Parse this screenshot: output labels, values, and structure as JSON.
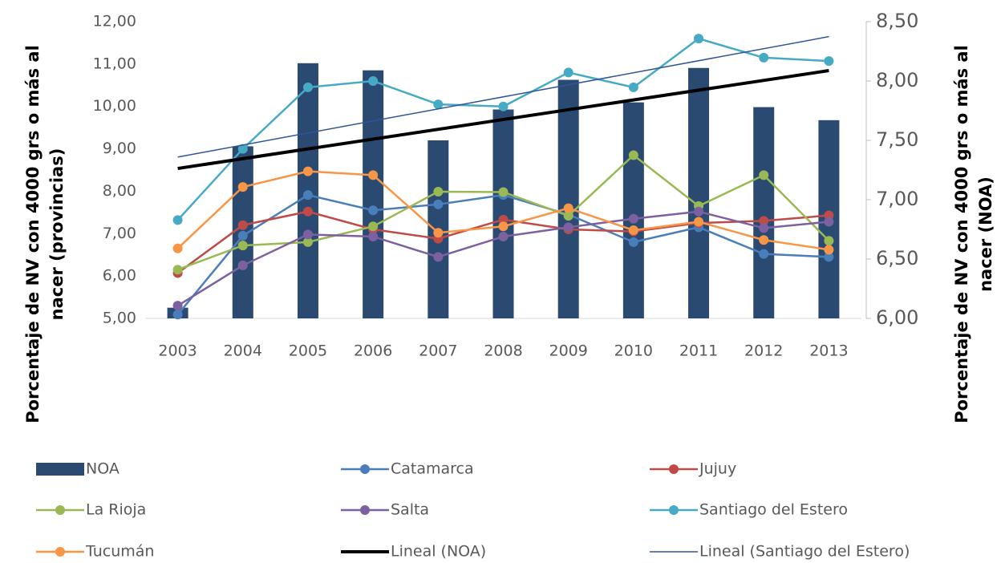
{
  "chart_data": {
    "type": "bar_line",
    "y_label": [
      "Porcentaje de NV con 4000 grs o más al",
      "nacer (provincias)"
    ],
    "y2_label": [
      "Porcentaje de NV con 4000 grs o más al",
      "nacer (NOA)"
    ],
    "categories": [
      "2003",
      "2004",
      "2005",
      "2006",
      "2007",
      "2008",
      "2009",
      "2010",
      "2011",
      "2012",
      "2013"
    ],
    "ylim": [
      5,
      12
    ],
    "yticks": [
      {
        "value": 5,
        "label": "5,00"
      },
      {
        "value": 6,
        "label": "6,00"
      },
      {
        "value": 7,
        "label": "7,00"
      },
      {
        "value": 8,
        "label": "8,00"
      },
      {
        "value": 9,
        "label": "9,00"
      },
      {
        "value": 10,
        "label": "10,00"
      },
      {
        "value": 11,
        "label": "11,00"
      },
      {
        "value": 12,
        "label": "12,00"
      }
    ],
    "y2lim": [
      6,
      8.5
    ],
    "y2ticks": [
      {
        "value": 6,
        "label": "6,00"
      },
      {
        "value": 6.5,
        "label": "6,50"
      },
      {
        "value": 7,
        "label": "7,00"
      },
      {
        "value": 7.5,
        "label": "7,50"
      },
      {
        "value": 8,
        "label": "8,00"
      },
      {
        "value": 8.5,
        "label": "8,50"
      }
    ],
    "series": [
      {
        "name": "NOA",
        "type": "bar",
        "axis": "y2",
        "color": "#2b4a72",
        "values": [
          6.09,
          7.45,
          8.15,
          8.09,
          7.5,
          7.76,
          8.01,
          7.82,
          8.11,
          7.78,
          7.67
        ],
        "trendline": {
          "name": "Lineal (NOA)",
          "color": "#000000"
        }
      },
      {
        "name": "Catamarca",
        "type": "line",
        "color": "#4a7ebb",
        "values": [
          5.09,
          6.95,
          7.91,
          7.55,
          7.69,
          7.91,
          7.45,
          6.8,
          7.15,
          6.52,
          6.45
        ]
      },
      {
        "name": "Jujuy",
        "type": "line",
        "color": "#be4b48",
        "values": [
          6.07,
          7.2,
          7.52,
          7.1,
          6.88,
          7.33,
          7.1,
          7.05,
          7.25,
          7.3,
          7.43
        ]
      },
      {
        "name": "La Rioja",
        "type": "line",
        "color": "#98b954",
        "values": [
          6.15,
          6.72,
          6.8,
          7.17,
          7.99,
          7.98,
          7.42,
          8.85,
          7.65,
          8.38,
          6.83
        ]
      },
      {
        "name": "Salta",
        "type": "line",
        "color": "#7d60a0",
        "values": [
          5.3,
          6.25,
          6.98,
          6.93,
          6.45,
          6.93,
          7.15,
          7.35,
          7.52,
          7.13,
          7.28
        ]
      },
      {
        "name": "Santiago del Estero",
        "type": "line",
        "color": "#46aac5",
        "values": [
          7.32,
          9.0,
          10.45,
          10.6,
          10.05,
          10.0,
          10.8,
          10.45,
          11.6,
          11.15,
          11.07
        ],
        "trendline": {
          "name": "Lineal (Santiago del Estero)",
          "color": "#2f5597"
        }
      },
      {
        "name": "Tucumán",
        "type": "line",
        "color": "#f79646",
        "values": [
          6.65,
          8.1,
          8.47,
          8.38,
          7.02,
          7.17,
          7.6,
          7.08,
          7.28,
          6.85,
          6.62
        ]
      }
    ]
  }
}
